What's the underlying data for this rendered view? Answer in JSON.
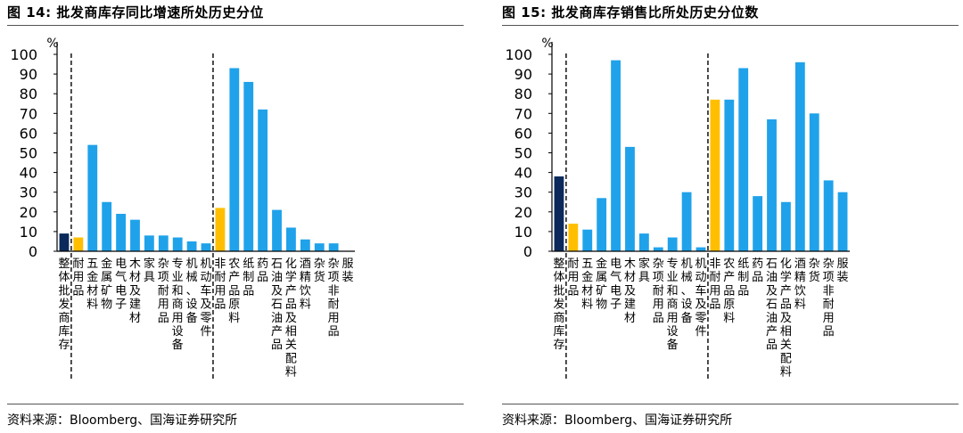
{
  "colors": {
    "blue": "#1fa2ea",
    "navy": "#0b2a5b",
    "gold": "#ffbf00",
    "axis": "#000000"
  },
  "chart_data": [
    {
      "type": "bar",
      "figure_label": "图 14:",
      "title": "批发商库存同比增速所处历史分位",
      "source": "资料来源：Bloomberg、国海证券研究所",
      "ylabel": "%",
      "ylim": [
        0,
        100
      ],
      "yticks": [
        0,
        10,
        20,
        30,
        40,
        50,
        60,
        70,
        80,
        90,
        100
      ],
      "categories": [
        "整体批发商库存",
        "耐用品",
        "五金材料",
        "金属矿物",
        "电气电子",
        "木材及建材",
        "家具",
        "杂项耐用品",
        "专业和商用设备",
        "机械、设备",
        "机动车及零件",
        "非耐用品",
        "农产品原料",
        "纸制品",
        "药品",
        "石油及石油产品",
        "化学产品及相关配料",
        "酒精饮料",
        "杂货",
        "杂项非耐用品",
        "服装"
      ],
      "values": [
        9,
        7,
        54,
        25,
        19,
        16,
        8,
        8,
        7,
        5,
        4,
        22,
        93,
        86,
        72,
        21,
        12,
        6,
        4,
        4,
        null
      ],
      "highlight": {
        "0": "navy",
        "1": "gold",
        "11": "gold"
      },
      "dividers_after": [
        0,
        10
      ]
    },
    {
      "type": "bar",
      "figure_label": "图 15:",
      "title": "批发商库存销售比所处历史分位数",
      "source": "资料来源：Bloomberg、国海证券研究所",
      "ylabel": "%",
      "ylim": [
        0,
        100
      ],
      "yticks": [
        0,
        10,
        20,
        30,
        40,
        50,
        60,
        70,
        80,
        90,
        100
      ],
      "categories": [
        "整体批发商库存",
        "耐用品",
        "五金材料",
        "金属矿物",
        "电气电子",
        "木材及建材",
        "家具",
        "杂项耐用品",
        "专业和商用设备",
        "机械、设备",
        "机动车及零件",
        "非耐用品",
        "农产品原料",
        "纸制品",
        "药品",
        "石油及石油产品",
        "化学产品及相关配料",
        "酒精饮料",
        "杂货",
        "杂项非耐用品",
        "服装"
      ],
      "values": [
        38,
        14,
        11,
        27,
        97,
        53,
        9,
        2,
        7,
        30,
        2,
        77,
        77,
        93,
        28,
        67,
        25,
        96,
        70,
        36,
        30
      ],
      "highlight": {
        "0": "navy",
        "1": "gold",
        "11": "gold"
      },
      "dividers_after": [
        0,
        10
      ]
    }
  ]
}
